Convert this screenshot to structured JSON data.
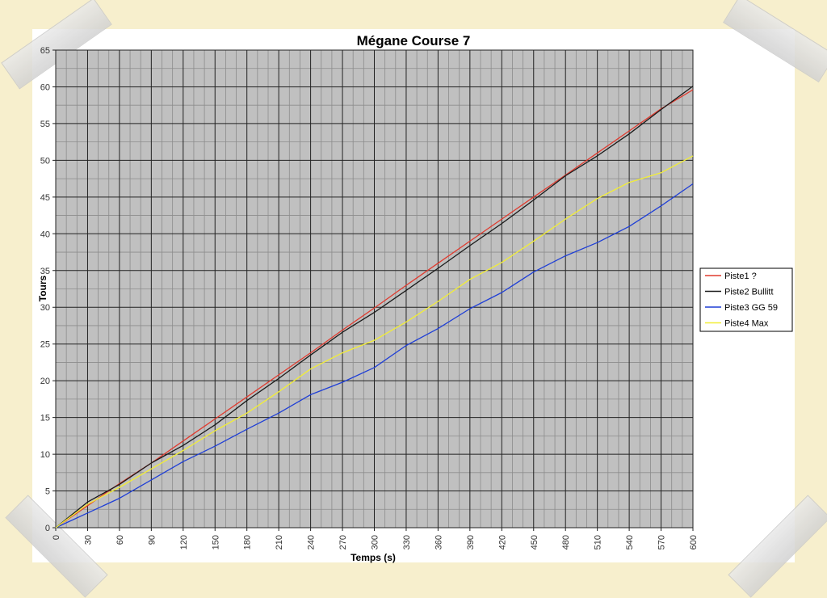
{
  "chart_data": {
    "type": "line",
    "title": "Mégane Course 7",
    "xlabel": "Temps (s)",
    "ylabel": "Tours",
    "xlim": [
      0,
      600
    ],
    "ylim": [
      0,
      65
    ],
    "x_ticks": [
      0,
      30,
      60,
      90,
      120,
      150,
      180,
      210,
      240,
      270,
      300,
      330,
      360,
      390,
      420,
      450,
      480,
      510,
      540,
      570,
      600
    ],
    "y_ticks": [
      0,
      5,
      10,
      15,
      20,
      25,
      30,
      35,
      40,
      45,
      50,
      55,
      60,
      65
    ],
    "grid": true,
    "legend_position": "right",
    "series": [
      {
        "name": "Piste1 ?",
        "color": "#e03b2f",
        "x": [
          0,
          30,
          60,
          90,
          120,
          150,
          180,
          210,
          240,
          270,
          300,
          330,
          360,
          390,
          420,
          450,
          480,
          510,
          540,
          570,
          600
        ],
        "y": [
          0,
          3,
          6,
          8.8,
          11.8,
          14.8,
          17.8,
          20.8,
          23.8,
          26.9,
          29.9,
          33,
          36,
          39,
          42,
          45,
          48,
          51,
          54,
          57,
          59.6
        ]
      },
      {
        "name": "Piste2 Bullitt",
        "color": "#1a1a1a",
        "x": [
          0,
          30,
          60,
          90,
          120,
          150,
          180,
          210,
          240,
          270,
          300,
          330,
          360,
          390,
          420,
          450,
          480,
          510,
          540,
          570,
          600
        ],
        "y": [
          0,
          3.5,
          5.9,
          8.8,
          11.2,
          14,
          17.3,
          20.3,
          23.5,
          26.6,
          29.3,
          32.3,
          35.3,
          38.4,
          41.4,
          44.6,
          47.9,
          50.6,
          53.6,
          56.9,
          60.1
        ]
      },
      {
        "name": "Piste3 GG 59",
        "color": "#1f3fd6",
        "x": [
          0,
          30,
          60,
          90,
          120,
          150,
          180,
          210,
          240,
          270,
          300,
          330,
          360,
          390,
          420,
          450,
          480,
          510,
          540,
          570,
          600
        ],
        "y": [
          0,
          2,
          4,
          6.5,
          9,
          11.1,
          13.4,
          15.6,
          18.1,
          19.8,
          21.8,
          24.8,
          27.1,
          29.8,
          32,
          34.8,
          37,
          38.8,
          41,
          43.8,
          46.8
        ]
      },
      {
        "name": "Piste4 Max",
        "color": "#f2ee36",
        "x": [
          0,
          30,
          60,
          90,
          120,
          150,
          180,
          210,
          240,
          270,
          300,
          330,
          360,
          390,
          420,
          450,
          480,
          510,
          540,
          570,
          600
        ],
        "y": [
          0,
          3.2,
          5.5,
          8,
          10.5,
          13.2,
          15.6,
          18.5,
          21.6,
          23.8,
          25.5,
          28,
          30.8,
          33.8,
          36.1,
          39,
          42,
          44.8,
          47,
          48.3,
          50.6
        ]
      }
    ]
  }
}
